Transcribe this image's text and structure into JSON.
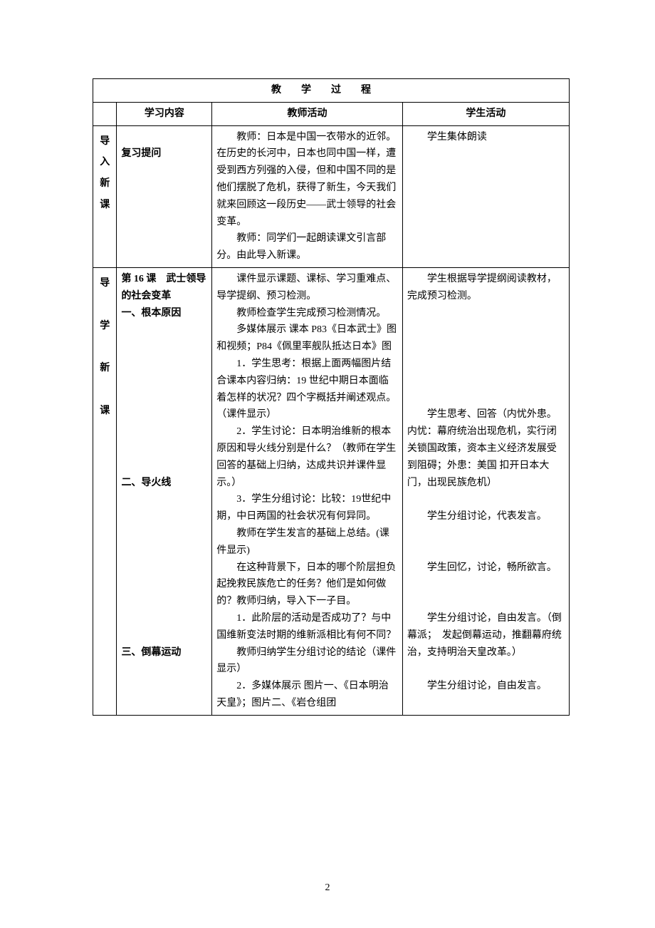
{
  "title": "教学过程",
  "headers": {
    "col2": "学习内容",
    "col3": "教师活动",
    "col4": "学生活动"
  },
  "row1": {
    "side": [
      "导",
      "入",
      "新",
      "课"
    ],
    "content_label": "复习提问",
    "teacher_p1": "教师：日本是中国一衣带水的近邻。在历史的长河中，日本也同中国一样，遭受到西方列强的入侵，但和中国不同的是他们摆脱了危机，获得了新生，今天我们就来回顾这一段历史——武士领导的社会变革。",
    "teacher_p2": "教师：同学们一起朗读课文引言部分。由此导入新课。",
    "student_p1": "学生集体朗读"
  },
  "row2": {
    "side": [
      "导",
      "学",
      "新",
      "课"
    ],
    "content_l1": "第 16 课　武士领导的社会变革",
    "content_l2": "一、根本原因",
    "content_l3": "二、导火线",
    "content_l4": "三、倒幕运动",
    "teacher_p1": "课件显示课题、课标、学习重难点、导学提纲、预习检测。",
    "teacher_p2": "教师检查学生完成预习检测情况。",
    "teacher_p3": "多媒体展示 课本 P83《日本武士》图和视频；P84《佩里率舰队抵达日本》图",
    "teacher_p4": "1．学生思考：根据上面两幅图片结合课本内容归纳：19 世纪中期日本面临着怎样的状况？四个字概括并阐述观点。（课件显示）",
    "teacher_p5": "2．学生讨论：日本明治维新的根本原因和导火线分别是什么？（教师在学生回答的基础上归纳，达成共识并课件显示。）",
    "teacher_p6": "3．学生分组讨论：比较：19世纪中期，中日两国的社会状况有何异同。",
    "teacher_p7": "教师在学生发言的基础上总结。(课件显示)",
    "teacher_p8": "在这种背景下，日本的哪个阶层担负起挽救民族危亡的任务？他们是如何做的？教师归纳，导入下一子目。",
    "teacher_p9": "1．此阶层的活动是否成功了？与中国维新变法时期的维新派相比有何不同？",
    "teacher_p10": "教师归纳学生分组讨论的结论（课件显示）",
    "teacher_p11": "2．多媒体展示 图片一、《日本明治天皇》；图片二、《岩仓组团",
    "student_p1": "学生根据导学提纲阅读教材，完成预习检测。",
    "student_p2": "学生思考、回答（内忧外患。内忧：幕府统治出现危机，实行闭关锁国政策，资本主义经济发展受到阻碍；外患：美国 扣开日本大门，出现民族危机）",
    "student_p3": "学生分组讨论，代表发言。",
    "student_p4": "学生回忆，讨论，畅所欲言。",
    "student_p5": "学生分组讨论，自由发言。（倒幕派；　发起倒幕运动，推翻幕府统治，支持明治天皇改革。）",
    "student_p6": "学生分组讨论，自由发言。"
  },
  "page_number": "2"
}
